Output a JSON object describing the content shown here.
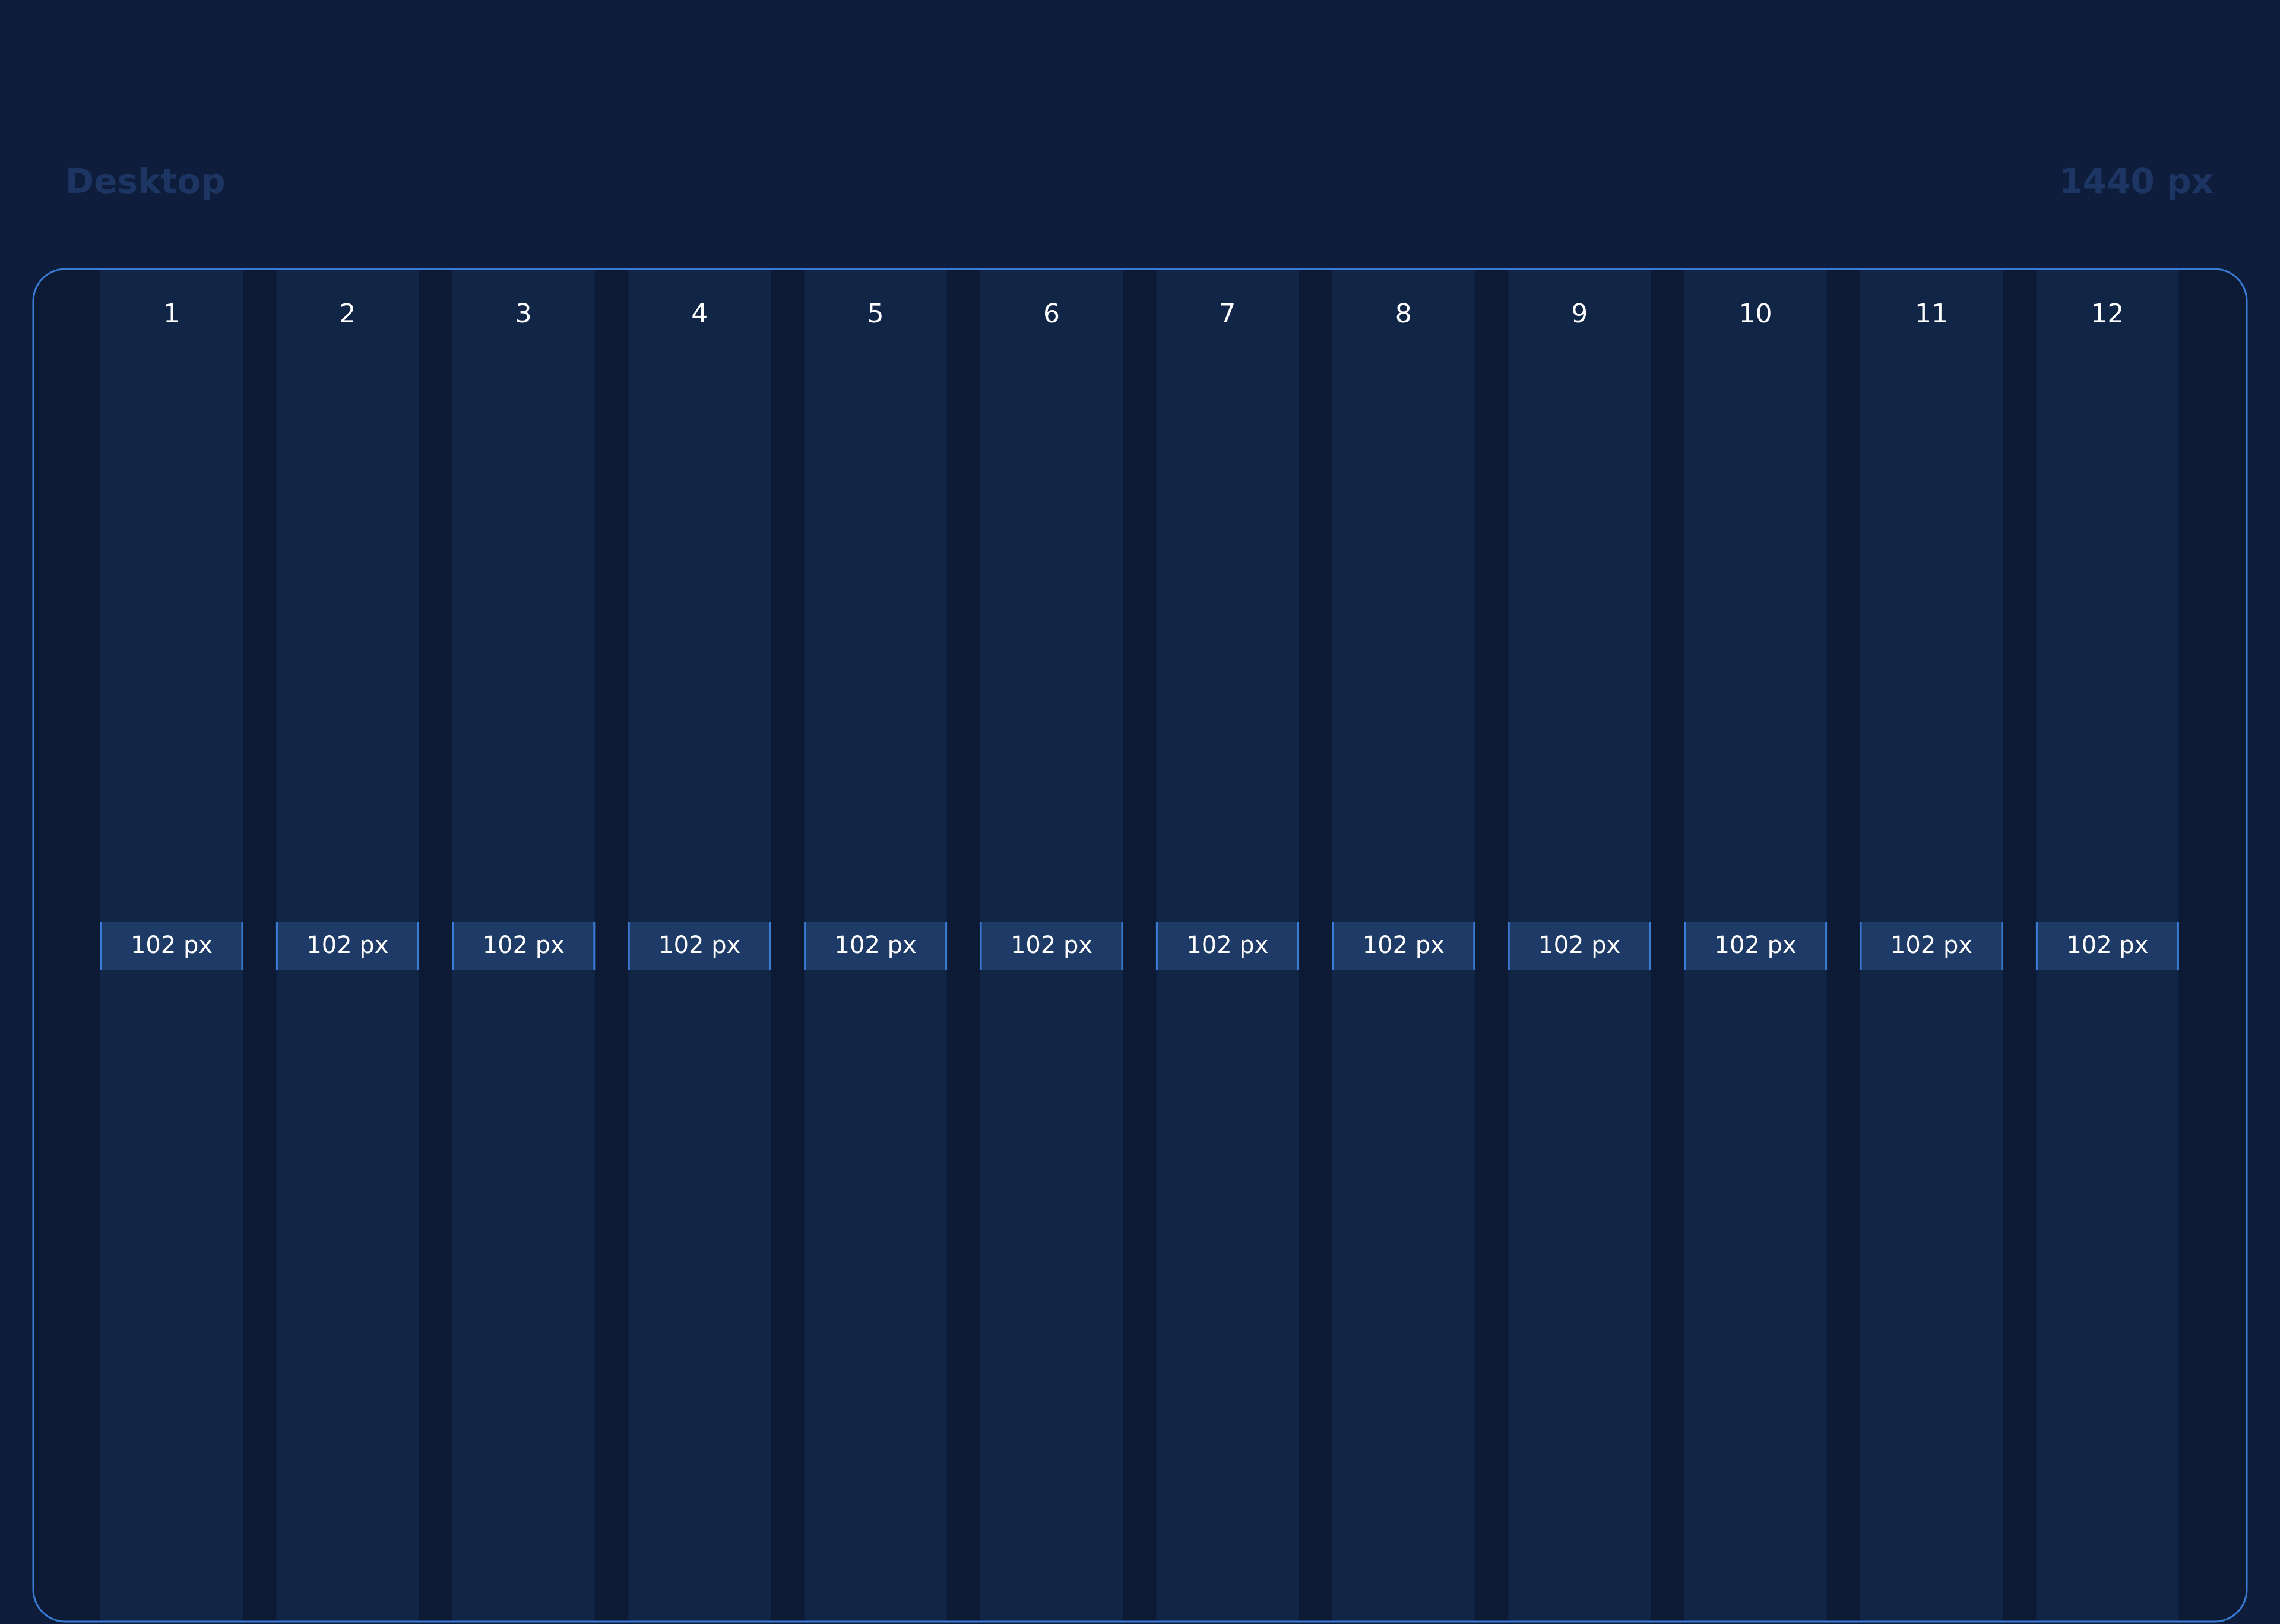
{
  "header": {
    "title": "Desktop",
    "width_label": "1440 px"
  },
  "columns": [
    {
      "number": "1",
      "width": "102 px"
    },
    {
      "number": "2",
      "width": "102 px"
    },
    {
      "number": "3",
      "width": "102 px"
    },
    {
      "number": "4",
      "width": "102 px"
    },
    {
      "number": "5",
      "width": "102 px"
    },
    {
      "number": "6",
      "width": "102 px"
    },
    {
      "number": "7",
      "width": "102 px"
    },
    {
      "number": "8",
      "width": "102 px"
    },
    {
      "number": "9",
      "width": "102 px"
    },
    {
      "number": "10",
      "width": "102 px"
    },
    {
      "number": "11",
      "width": "102 px"
    },
    {
      "number": "12",
      "width": "102 px"
    }
  ]
}
